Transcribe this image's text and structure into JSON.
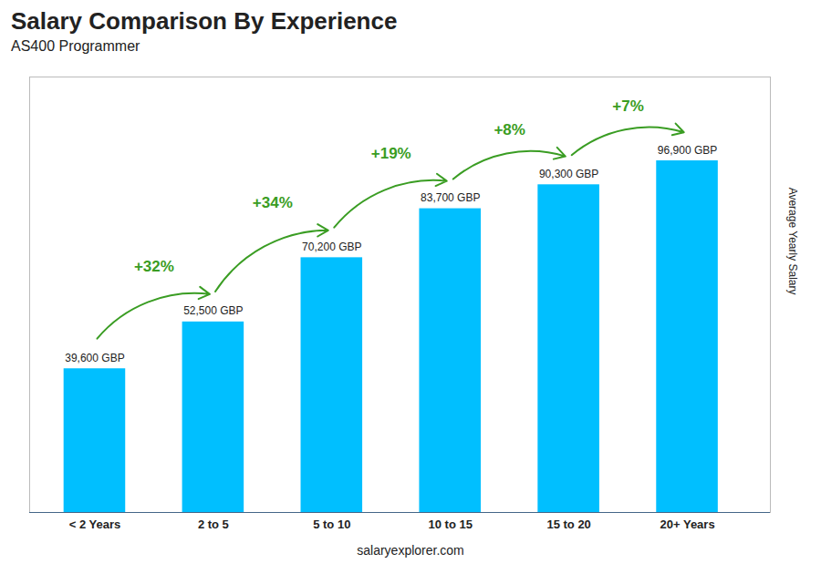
{
  "chart_data": {
    "type": "bar",
    "title": "Salary Comparison By Experience",
    "subtitle": "AS400 Programmer",
    "categories": [
      "< 2 Years",
      "2 to 5",
      "5 to 10",
      "10 to 15",
      "15 to 20",
      "20+ Years"
    ],
    "values": [
      39600,
      52500,
      70200,
      83700,
      90300,
      96900
    ],
    "value_labels": [
      "39,600 GBP",
      "52,500 GBP",
      "70,200 GBP",
      "83,700 GBP",
      "90,300 GBP",
      "96,900 GBP"
    ],
    "data_labels": true,
    "color": "#00BFFF",
    "ylabel": "Average Yearly Salary",
    "ylim": [
      0,
      120000
    ],
    "tick_labels": "x",
    "annotations": [
      {
        "text": "+32%",
        "from": "< 2 Years",
        "to": "2 to 5"
      },
      {
        "text": "+34%",
        "from": "2 to 5",
        "to": "5 to 10"
      },
      {
        "text": "+19%",
        "from": "5 to 10",
        "to": "10 to 15"
      },
      {
        "text": "+8%",
        "from": "10 to 15",
        "to": "15 to 20"
      },
      {
        "text": "+7%",
        "from": "15 to 20",
        "to": "20+ Years"
      }
    ],
    "caption": "salaryexplorer.com"
  }
}
